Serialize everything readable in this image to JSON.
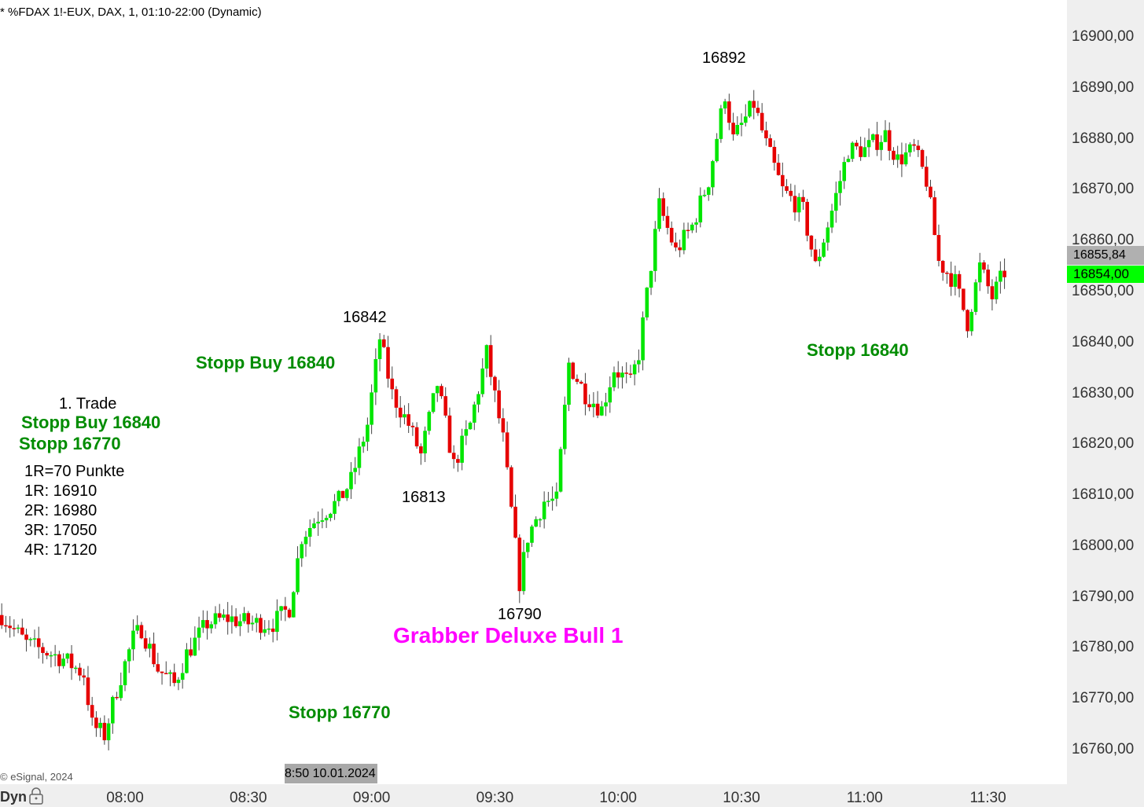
{
  "header": {
    "title": "* %FDAX 1!-EUX, DAX, 1, 01:10-22:00 (Dynamic)",
    "copyright": "© eSignal, 2024"
  },
  "colors": {
    "up": "#00e600",
    "down": "#e60000",
    "current_price_bg": "#00ff00",
    "last_price_bg": "#b0b0b0"
  },
  "axis": {
    "y_ticks": [
      "16900,00",
      "16890,00",
      "16880,00",
      "16870,00",
      "16860,00",
      "16850,00",
      "16840,00",
      "16830,00",
      "16820,00",
      "16810,00",
      "16800,00",
      "16790,00",
      "16780,00",
      "16770,00",
      "16760,00"
    ],
    "x_ticks": [
      "08:00",
      "08:30",
      "09:00",
      "09:30",
      "10:00",
      "10:30",
      "11:00",
      "11:30"
    ],
    "dyn_label": "Dyn",
    "cursor_time": "8:50 10.01.2024",
    "current_price": "16854,00",
    "last_price": "16855,84"
  },
  "annotations": {
    "high1": "16842",
    "low1": "16813",
    "low2": "16790",
    "high2": "16892",
    "stopp_buy_top": "Stopp Buy 16840",
    "stopp_right": "Stopp 16840",
    "stopp_bottom": "Stopp 16770",
    "trade_title": "1. Trade",
    "trade_stopp_buy": "Stopp Buy 16840",
    "trade_stopp": "Stopp 16770",
    "r_lines": [
      "1R=70 Punkte",
      "1R: 16910",
      "2R: 16980",
      "3R: 17050",
      "4R: 17120"
    ],
    "pattern": "Grabber Deluxe Bull 1"
  },
  "chart_data": {
    "type": "candlestick",
    "interval": "1 min",
    "ylim": [
      16750,
      16906
    ],
    "xrange": [
      "07:30",
      "11:35"
    ],
    "path": [
      [
        "07:30",
        16786.6
      ],
      [
        "07:36",
        16781
      ],
      [
        "07:45",
        16778
      ],
      [
        "07:50",
        16775
      ],
      [
        "07:52",
        16765
      ],
      [
        "07:55",
        16763
      ],
      [
        "07:58",
        16772
      ],
      [
        "08:02",
        16782
      ],
      [
        "08:04",
        16784
      ],
      [
        "08:08",
        16776
      ],
      [
        "08:12",
        16773
      ],
      [
        "08:15",
        16779
      ],
      [
        "08:20",
        16785
      ],
      [
        "08:25",
        16786
      ],
      [
        "08:30",
        16785
      ],
      [
        "08:36",
        16785
      ],
      [
        "08:40",
        16788
      ],
      [
        "08:43",
        16802
      ],
      [
        "08:47",
        16806
      ],
      [
        "08:52",
        16809
      ],
      [
        "08:55",
        16813
      ],
      [
        "08:59",
        16824
      ],
      [
        "09:02",
        16841
      ],
      [
        "09:05",
        16830
      ],
      [
        "09:09",
        16824
      ],
      [
        "09:12",
        16818
      ],
      [
        "09:16",
        16832
      ],
      [
        "09:20",
        16816
      ],
      [
        "09:24",
        16824
      ],
      [
        "09:28",
        16838
      ],
      [
        "09:32",
        16821
      ],
      [
        "09:36",
        16793
      ],
      [
        "09:38",
        16802
      ],
      [
        "09:42",
        16809
      ],
      [
        "09:45",
        16809
      ],
      [
        "09:48",
        16836
      ],
      [
        "09:52",
        16830
      ],
      [
        "09:56",
        16827
      ],
      [
        "09:59",
        16835
      ],
      [
        "10:03",
        16832
      ],
      [
        "10:05",
        16838
      ],
      [
        "10:10",
        16867
      ],
      [
        "10:14",
        16858
      ],
      [
        "10:18",
        16863
      ],
      [
        "10:22",
        16872
      ],
      [
        "10:26",
        16889
      ],
      [
        "10:28",
        16880
      ],
      [
        "10:33",
        16887
      ],
      [
        "10:36",
        16879
      ],
      [
        "10:40",
        16870
      ],
      [
        "10:45",
        16866
      ],
      [
        "10:48",
        16855
      ],
      [
        "10:52",
        16866
      ],
      [
        "10:56",
        16878
      ],
      [
        "11:00",
        16878
      ],
      [
        "11:05",
        16881
      ],
      [
        "11:08",
        16876
      ],
      [
        "11:12",
        16878
      ],
      [
        "11:15",
        16872
      ],
      [
        "11:18",
        16856
      ],
      [
        "11:22",
        16852
      ],
      [
        "11:25",
        16844
      ],
      [
        "11:28",
        16855
      ],
      [
        "11:31",
        16849
      ],
      [
        "11:34",
        16854
      ]
    ]
  }
}
